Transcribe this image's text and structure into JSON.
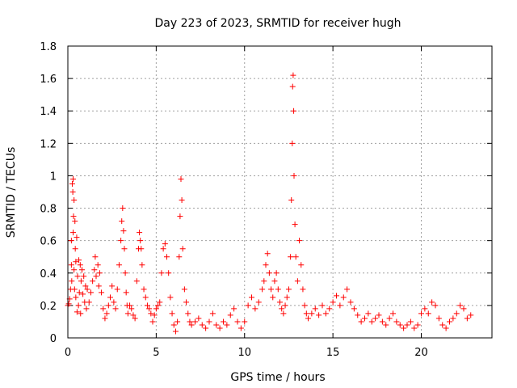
{
  "chart_data": {
    "type": "scatter",
    "title": "Day 223 of 2023, SRMTID for receiver hugh",
    "xlabel": "GPS time / hours",
    "ylabel": "SRMTID / TECUs",
    "xlim": [
      0,
      24
    ],
    "ylim": [
      0,
      1.8
    ],
    "xticks": [
      0,
      5,
      10,
      15,
      20
    ],
    "xtick_labels": [
      "0",
      "5",
      "10",
      "15",
      "20"
    ],
    "yticks": [
      0,
      0.2,
      0.4,
      0.6,
      0.8,
      1,
      1.2,
      1.4,
      1.6,
      1.8
    ],
    "ytick_labels": [
      "0",
      "0.2",
      "0.4",
      "0.6",
      "0.8",
      "1",
      "1.2",
      "1.4",
      "1.6",
      "1.8"
    ],
    "grid": true,
    "marker": "+",
    "marker_color": "#ff0000",
    "series": [
      {
        "name": "SRMTID",
        "points": [
          [
            0.0,
            0.2
          ],
          [
            0.05,
            0.21
          ],
          [
            0.1,
            0.24
          ],
          [
            0.15,
            0.3
          ],
          [
            0.2,
            0.45
          ],
          [
            0.2,
            0.6
          ],
          [
            0.22,
            0.35
          ],
          [
            0.25,
            0.95
          ],
          [
            0.28,
            0.9
          ],
          [
            0.3,
            0.65
          ],
          [
            0.3,
            0.98
          ],
          [
            0.32,
            0.75
          ],
          [
            0.35,
            0.85
          ],
          [
            0.35,
            0.42
          ],
          [
            0.38,
            0.3
          ],
          [
            0.4,
            0.72
          ],
          [
            0.42,
            0.55
          ],
          [
            0.45,
            0.25
          ],
          [
            0.45,
            0.47
          ],
          [
            0.5,
            0.62
          ],
          [
            0.52,
            0.16
          ],
          [
            0.55,
            0.38
          ],
          [
            0.6,
            0.2
          ],
          [
            0.62,
            0.48
          ],
          [
            0.65,
            0.28
          ],
          [
            0.7,
            0.45
          ],
          [
            0.72,
            0.15
          ],
          [
            0.75,
            0.35
          ],
          [
            0.8,
            0.42
          ],
          [
            0.85,
            0.27
          ],
          [
            0.9,
            0.38
          ],
          [
            0.95,
            0.22
          ],
          [
            1.0,
            0.32
          ],
          [
            1.05,
            0.18
          ],
          [
            1.1,
            0.3
          ],
          [
            1.2,
            0.22
          ],
          [
            1.3,
            0.28
          ],
          [
            1.4,
            0.35
          ],
          [
            1.5,
            0.42
          ],
          [
            1.55,
            0.5
          ],
          [
            1.6,
            0.38
          ],
          [
            1.7,
            0.45
          ],
          [
            1.75,
            0.32
          ],
          [
            1.8,
            0.4
          ],
          [
            1.9,
            0.28
          ],
          [
            2.0,
            0.18
          ],
          [
            2.1,
            0.12
          ],
          [
            2.2,
            0.15
          ],
          [
            2.3,
            0.2
          ],
          [
            2.4,
            0.25
          ],
          [
            2.5,
            0.32
          ],
          [
            2.6,
            0.22
          ],
          [
            2.7,
            0.18
          ],
          [
            2.8,
            0.3
          ],
          [
            2.9,
            0.45
          ],
          [
            3.0,
            0.6
          ],
          [
            3.05,
            0.72
          ],
          [
            3.1,
            0.8
          ],
          [
            3.15,
            0.66
          ],
          [
            3.2,
            0.55
          ],
          [
            3.25,
            0.4
          ],
          [
            3.3,
            0.28
          ],
          [
            3.35,
            0.2
          ],
          [
            3.4,
            0.15
          ],
          [
            3.5,
            0.2
          ],
          [
            3.6,
            0.18
          ],
          [
            3.7,
            0.14
          ],
          [
            3.8,
            0.12
          ],
          [
            3.9,
            0.35
          ],
          [
            4.0,
            0.55
          ],
          [
            4.05,
            0.65
          ],
          [
            4.1,
            0.6
          ],
          [
            4.15,
            0.55
          ],
          [
            4.2,
            0.45
          ],
          [
            4.3,
            0.3
          ],
          [
            4.4,
            0.25
          ],
          [
            4.5,
            0.2
          ],
          [
            4.6,
            0.18
          ],
          [
            4.7,
            0.15
          ],
          [
            4.8,
            0.1
          ],
          [
            4.9,
            0.14
          ],
          [
            5.0,
            0.18
          ],
          [
            5.1,
            0.2
          ],
          [
            5.2,
            0.22
          ],
          [
            5.3,
            0.4
          ],
          [
            5.4,
            0.55
          ],
          [
            5.5,
            0.58
          ],
          [
            5.6,
            0.5
          ],
          [
            5.7,
            0.4
          ],
          [
            5.8,
            0.25
          ],
          [
            5.9,
            0.15
          ],
          [
            6.0,
            0.08
          ],
          [
            6.1,
            0.04
          ],
          [
            6.2,
            0.1
          ],
          [
            6.3,
            0.5
          ],
          [
            6.35,
            0.75
          ],
          [
            6.4,
            0.98
          ],
          [
            6.45,
            0.85
          ],
          [
            6.5,
            0.55
          ],
          [
            6.6,
            0.3
          ],
          [
            6.7,
            0.22
          ],
          [
            6.8,
            0.15
          ],
          [
            6.9,
            0.1
          ],
          [
            7.0,
            0.08
          ],
          [
            7.2,
            0.1
          ],
          [
            7.4,
            0.12
          ],
          [
            7.6,
            0.08
          ],
          [
            7.8,
            0.06
          ],
          [
            8.0,
            0.1
          ],
          [
            8.2,
            0.15
          ],
          [
            8.4,
            0.08
          ],
          [
            8.6,
            0.06
          ],
          [
            8.8,
            0.1
          ],
          [
            9.0,
            0.08
          ],
          [
            9.2,
            0.14
          ],
          [
            9.4,
            0.18
          ],
          [
            9.6,
            0.1
          ],
          [
            9.8,
            0.06
          ],
          [
            10.0,
            0.1
          ],
          [
            10.2,
            0.2
          ],
          [
            10.4,
            0.25
          ],
          [
            10.6,
            0.18
          ],
          [
            10.8,
            0.22
          ],
          [
            11.0,
            0.3
          ],
          [
            11.1,
            0.35
          ],
          [
            11.2,
            0.45
          ],
          [
            11.3,
            0.52
          ],
          [
            11.4,
            0.4
          ],
          [
            11.5,
            0.3
          ],
          [
            11.6,
            0.25
          ],
          [
            11.7,
            0.35
          ],
          [
            11.8,
            0.4
          ],
          [
            11.9,
            0.3
          ],
          [
            12.0,
            0.22
          ],
          [
            12.1,
            0.18
          ],
          [
            12.2,
            0.15
          ],
          [
            12.3,
            0.2
          ],
          [
            12.4,
            0.25
          ],
          [
            12.5,
            0.3
          ],
          [
            12.6,
            0.5
          ],
          [
            12.65,
            0.85
          ],
          [
            12.7,
            1.2
          ],
          [
            12.72,
            1.55
          ],
          [
            12.75,
            1.62
          ],
          [
            12.78,
            1.4
          ],
          [
            12.8,
            1.0
          ],
          [
            12.85,
            0.7
          ],
          [
            12.9,
            0.5
          ],
          [
            13.0,
            0.35
          ],
          [
            13.1,
            0.6
          ],
          [
            13.2,
            0.45
          ],
          [
            13.3,
            0.3
          ],
          [
            13.4,
            0.2
          ],
          [
            13.5,
            0.15
          ],
          [
            13.6,
            0.12
          ],
          [
            13.8,
            0.15
          ],
          [
            14.0,
            0.18
          ],
          [
            14.2,
            0.14
          ],
          [
            14.4,
            0.2
          ],
          [
            14.6,
            0.15
          ],
          [
            14.8,
            0.18
          ],
          [
            15.0,
            0.22
          ],
          [
            15.2,
            0.26
          ],
          [
            15.4,
            0.2
          ],
          [
            15.6,
            0.25
          ],
          [
            15.8,
            0.3
          ],
          [
            16.0,
            0.22
          ],
          [
            16.2,
            0.18
          ],
          [
            16.4,
            0.14
          ],
          [
            16.6,
            0.1
          ],
          [
            16.8,
            0.12
          ],
          [
            17.0,
            0.15
          ],
          [
            17.2,
            0.1
          ],
          [
            17.4,
            0.12
          ],
          [
            17.6,
            0.14
          ],
          [
            17.8,
            0.1
          ],
          [
            18.0,
            0.08
          ],
          [
            18.2,
            0.12
          ],
          [
            18.4,
            0.15
          ],
          [
            18.6,
            0.1
          ],
          [
            18.8,
            0.08
          ],
          [
            19.0,
            0.06
          ],
          [
            19.2,
            0.08
          ],
          [
            19.4,
            0.1
          ],
          [
            19.6,
            0.06
          ],
          [
            19.8,
            0.08
          ],
          [
            20.0,
            0.15
          ],
          [
            20.2,
            0.18
          ],
          [
            20.4,
            0.15
          ],
          [
            20.6,
            0.22
          ],
          [
            20.8,
            0.2
          ],
          [
            21.0,
            0.12
          ],
          [
            21.2,
            0.08
          ],
          [
            21.4,
            0.06
          ],
          [
            21.6,
            0.1
          ],
          [
            21.8,
            0.12
          ],
          [
            22.0,
            0.15
          ],
          [
            22.2,
            0.2
          ],
          [
            22.4,
            0.18
          ],
          [
            22.6,
            0.12
          ],
          [
            22.8,
            0.14
          ]
        ]
      }
    ]
  }
}
